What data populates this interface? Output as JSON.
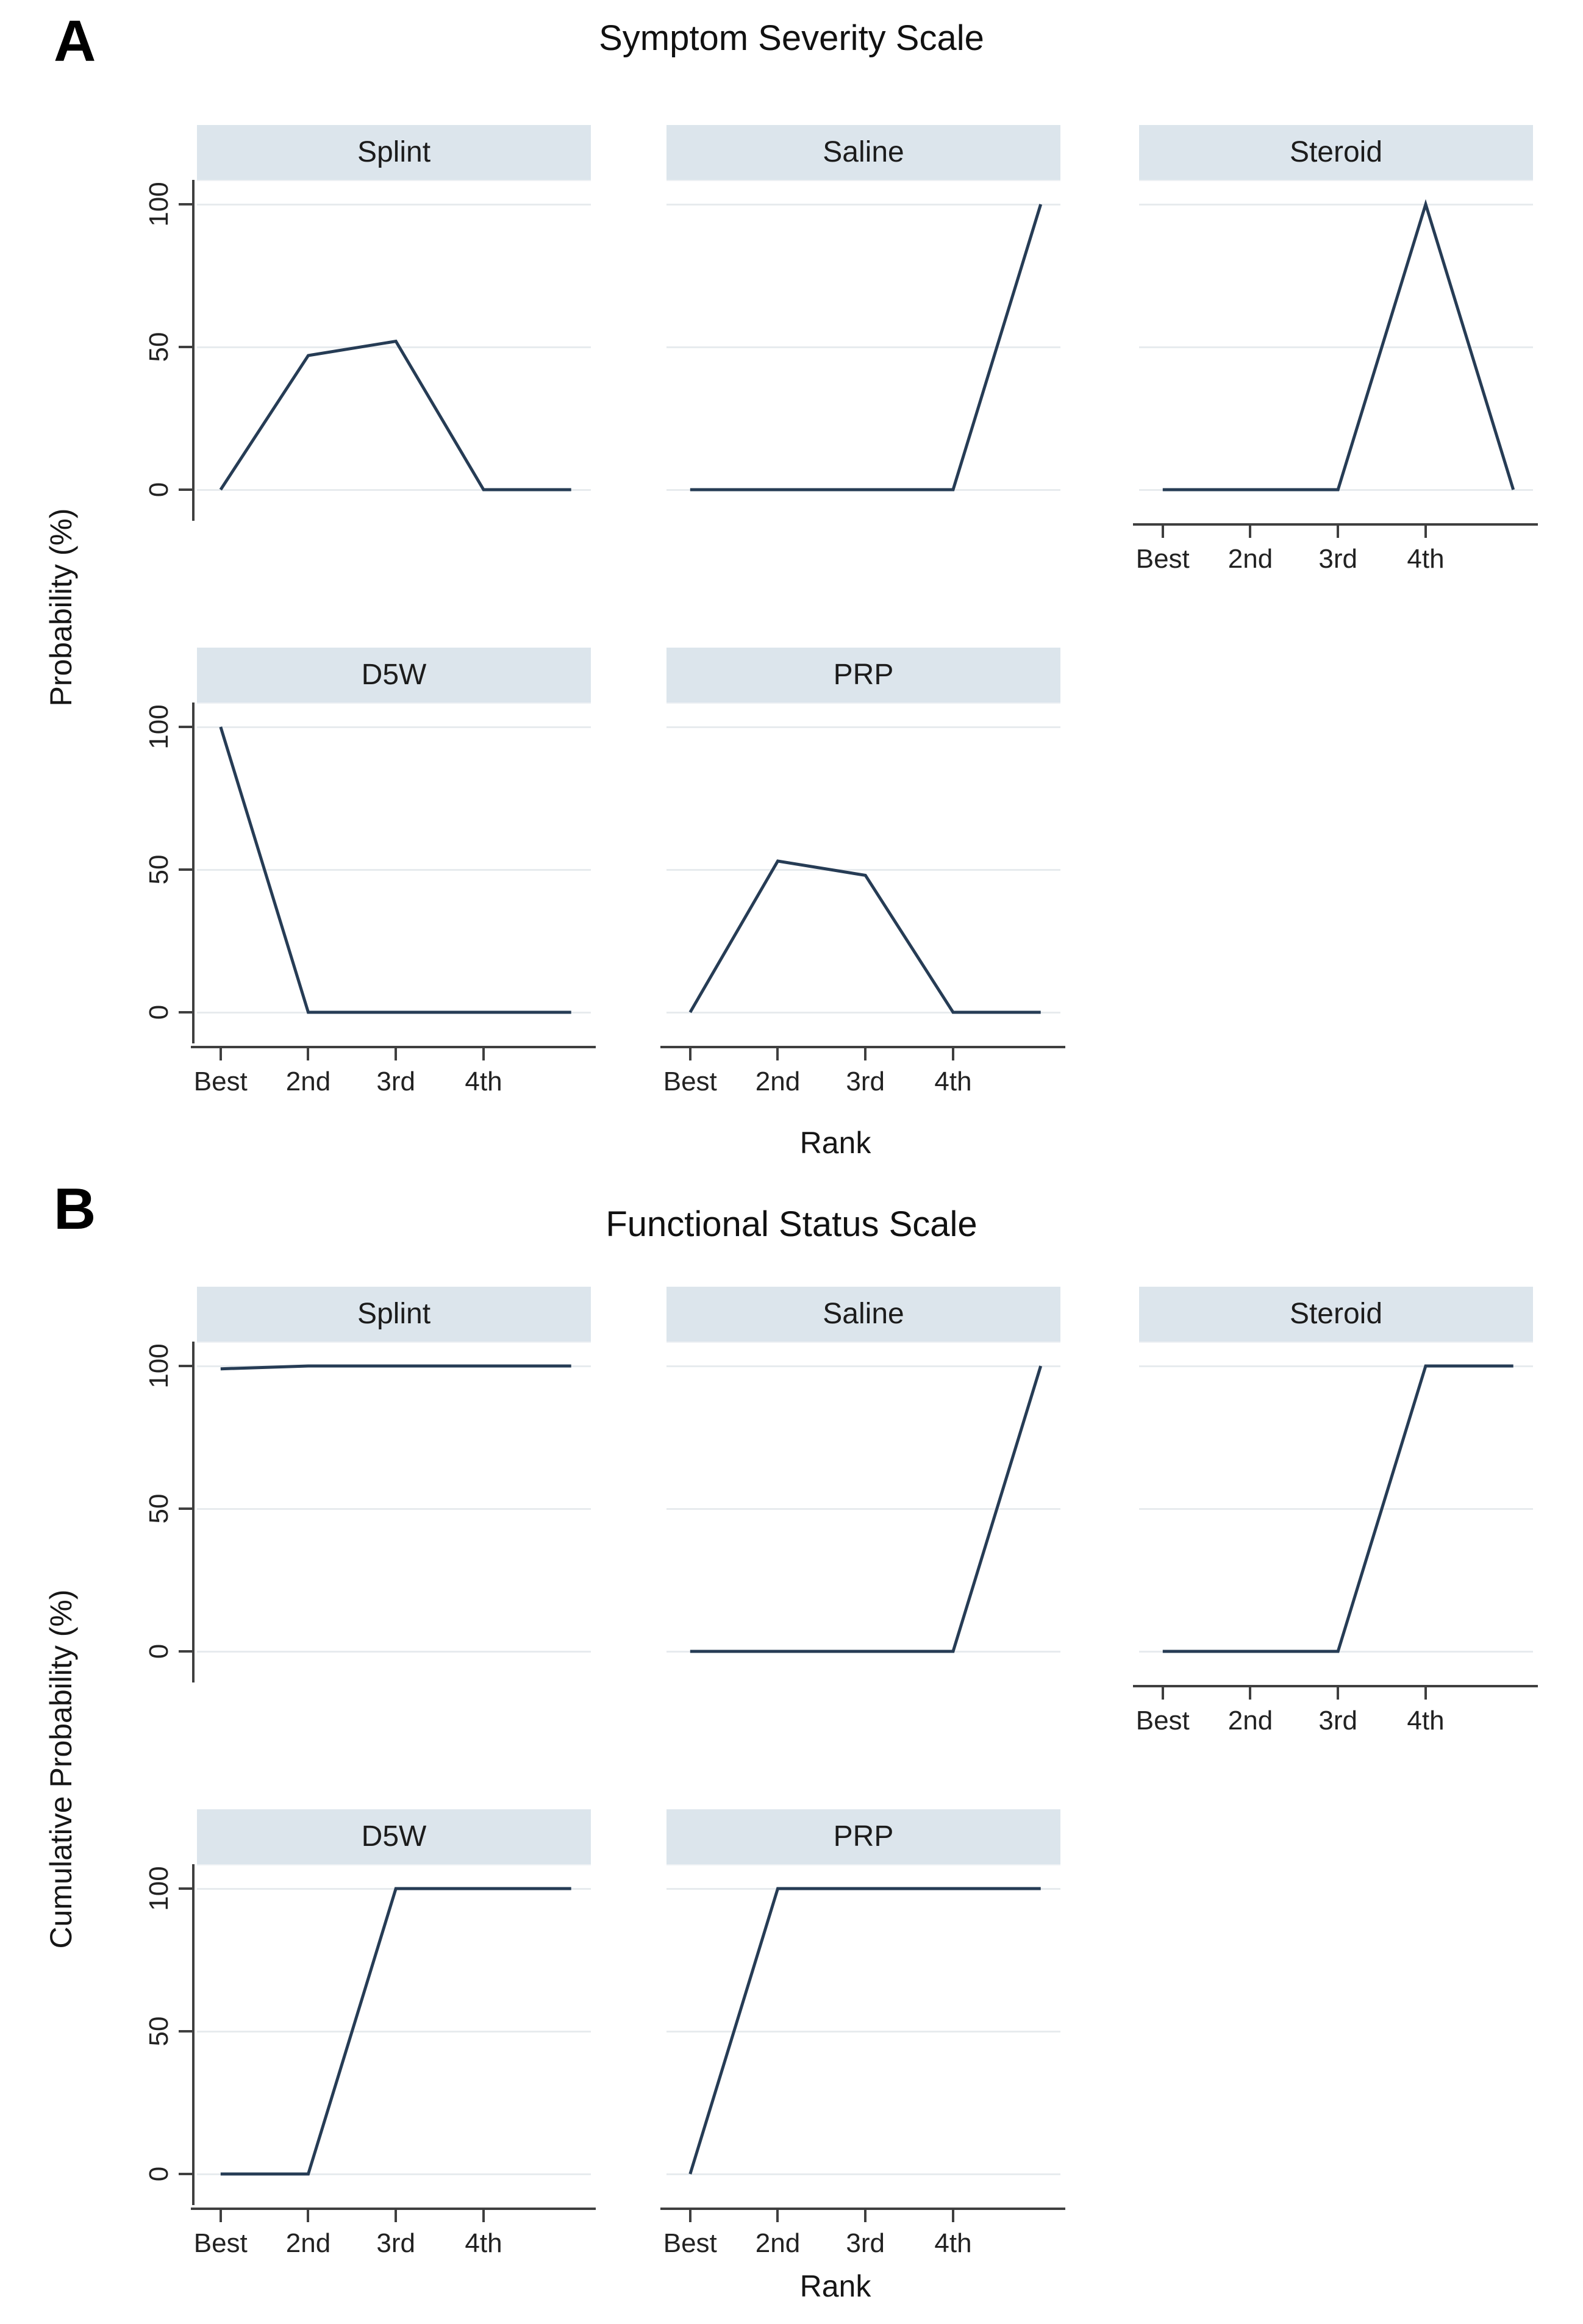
{
  "figure": {
    "panels": [
      {
        "letter": "A",
        "title": "Symptom Severity Scale",
        "ylabel": "Probability (%)",
        "xlabel": "Rank"
      },
      {
        "letter": "B",
        "title": "Functional Status Scale",
        "ylabel": "Cumulative Probability (%)",
        "xlabel": "Rank"
      }
    ]
  },
  "colors": {
    "line": "#263c55",
    "facet_header_bg": "#dce5ec",
    "gridline": "#e7ebee",
    "axis": "#3f3f3f",
    "text": "#141414"
  },
  "chart_data": [
    {
      "type": "line",
      "panel": "A",
      "title": "Symptom Severity Scale",
      "xlabel": "Rank",
      "ylabel": "Probability (%)",
      "x_categories": [
        "Best",
        "2nd",
        "3rd",
        "4th",
        "5th (unlabeled)"
      ],
      "x_ticklabels": [
        "Best",
        "2nd",
        "3rd",
        "4th"
      ],
      "yticks": [
        0,
        50,
        100
      ],
      "ytick_labels_top_to_bottom": [
        "100",
        "50",
        "0"
      ],
      "ylim": [
        0,
        100
      ],
      "grid": "light horizontal gridlines at 0, 50, 100",
      "legend": "none",
      "facet_layout": "3 columns x 2 rows; y-axis on left column, x-axis on bottom of each column",
      "series": [
        {
          "name": "Splint",
          "values": [
            0,
            47,
            52,
            0,
            0
          ]
        },
        {
          "name": "Saline",
          "values": [
            0,
            0,
            0,
            0,
            100
          ]
        },
        {
          "name": "Steroid",
          "values": [
            0,
            0,
            0,
            100,
            0
          ]
        },
        {
          "name": "D5W",
          "values": [
            100,
            0,
            0,
            0,
            0
          ]
        },
        {
          "name": "PRP",
          "values": [
            0,
            53,
            48,
            0,
            0
          ]
        }
      ]
    },
    {
      "type": "line",
      "panel": "B",
      "title": "Functional Status Scale",
      "xlabel": "Rank",
      "ylabel": "Cumulative Probability (%)",
      "x_categories": [
        "Best",
        "2nd",
        "3rd",
        "4th",
        "5th (unlabeled)"
      ],
      "x_ticklabels": [
        "Best",
        "2nd",
        "3rd",
        "4th"
      ],
      "yticks": [
        0,
        50,
        100
      ],
      "ytick_labels_top_to_bottom": [
        "100",
        "50",
        "0"
      ],
      "ylim": [
        0,
        100
      ],
      "grid": "light horizontal gridlines at 0, 50, 100",
      "legend": "none",
      "facet_layout": "3 columns x 2 rows; y-axis on left column, x-axis on bottom of each column",
      "series": [
        {
          "name": "Splint",
          "values": [
            99,
            100,
            100,
            100,
            100
          ]
        },
        {
          "name": "Saline",
          "values": [
            0,
            0,
            0,
            0,
            100
          ]
        },
        {
          "name": "Steroid",
          "values": [
            0,
            0,
            0,
            100,
            100
          ]
        },
        {
          "name": "D5W",
          "values": [
            0,
            0,
            100,
            100,
            100
          ]
        },
        {
          "name": "PRP",
          "values": [
            0,
            100,
            100,
            100,
            100
          ]
        }
      ]
    }
  ]
}
